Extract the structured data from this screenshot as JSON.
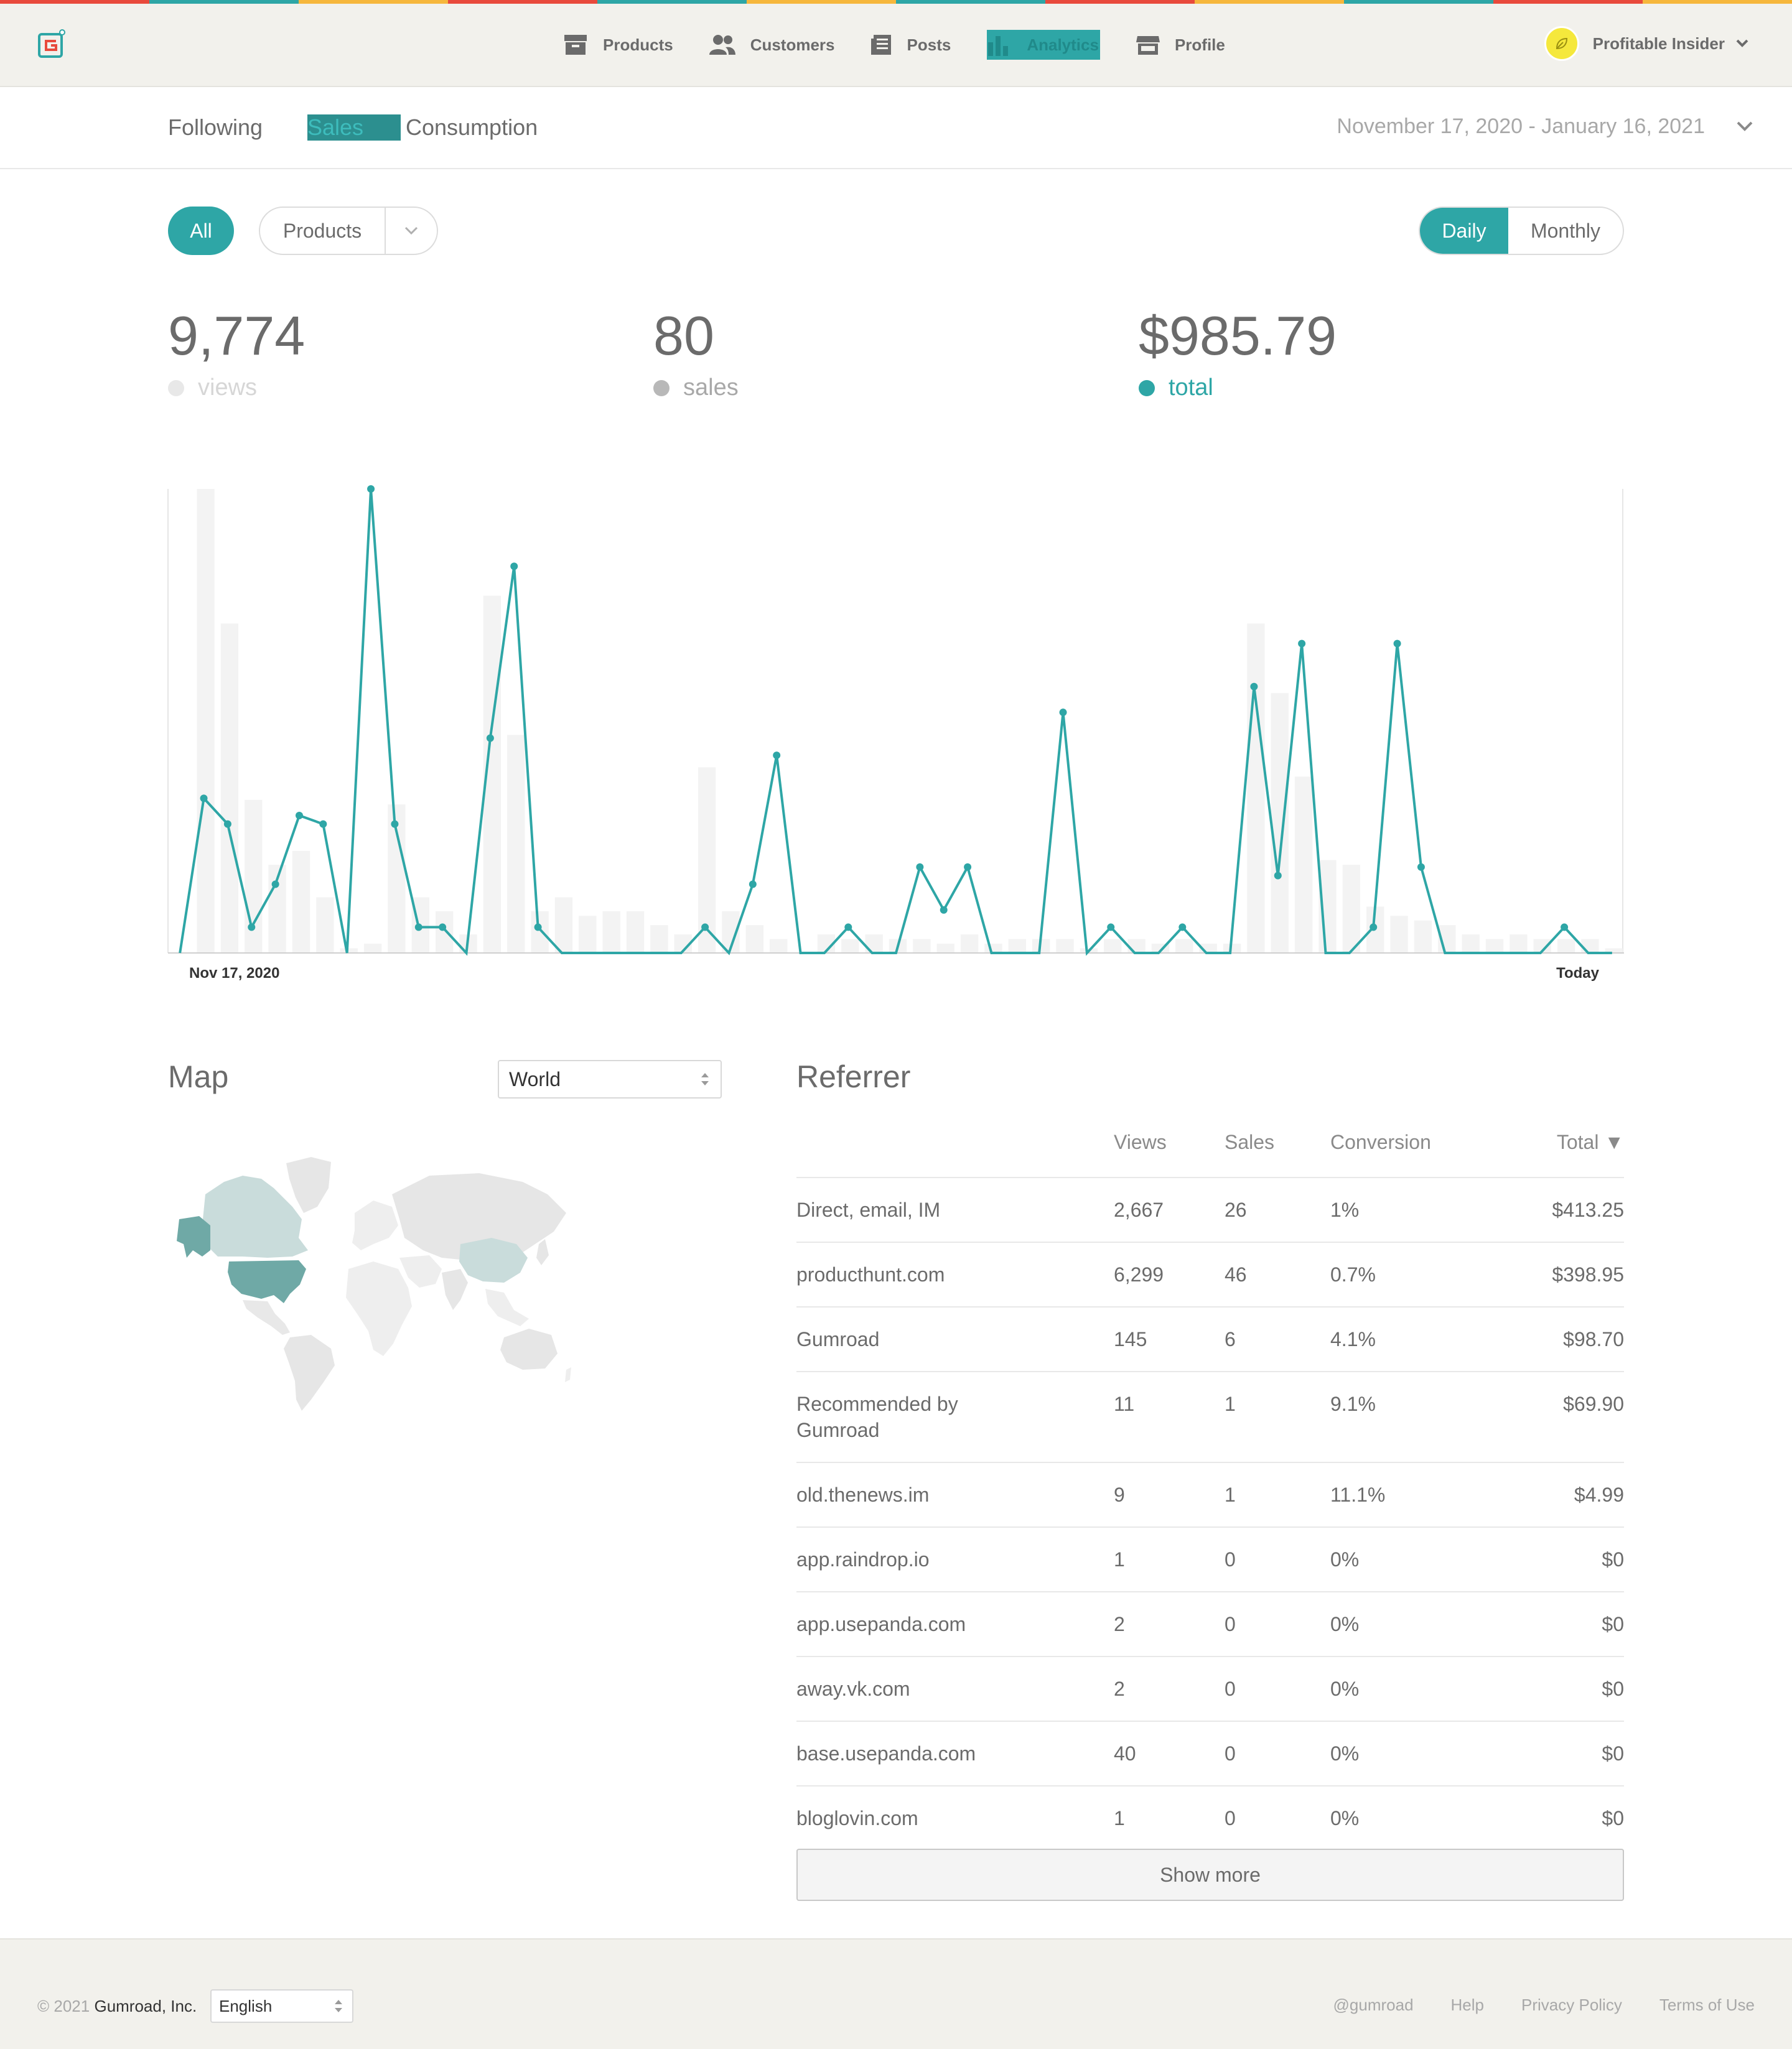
{
  "stripe_colors": [
    "#e84a3c",
    "#2ea6a6",
    "#f6b73c",
    "#e84a3c",
    "#2ea6a6",
    "#f6b73c",
    "#2ea6a6",
    "#e84a3c",
    "#f6b73c",
    "#2ea6a6",
    "#e84a3c",
    "#f6b73c"
  ],
  "accent_color": "#2ea6a6",
  "header": {
    "logo_icon": "gumroad-logo-icon",
    "nav": [
      {
        "label": "Products",
        "icon": "archive-box-icon",
        "active": false
      },
      {
        "label": "Customers",
        "icon": "users-icon",
        "active": false
      },
      {
        "label": "Posts",
        "icon": "document-icon",
        "active": false
      },
      {
        "label": "Analytics",
        "icon": "bar-chart-icon",
        "active": true
      },
      {
        "label": "Profile",
        "icon": "storefront-icon",
        "active": false
      }
    ],
    "user_name": "Profitable Insider"
  },
  "subnav": {
    "tabs": [
      "Following",
      "Sales",
      "Consumption"
    ],
    "selected": "Sales",
    "date_range": "November 17, 2020 - January 16, 2021"
  },
  "filters": {
    "all_label": "All",
    "products_label": "Products",
    "period": {
      "daily": "Daily",
      "monthly": "Monthly",
      "selected": "Daily"
    }
  },
  "stats": {
    "views": {
      "value": "9,774",
      "label": "views",
      "color": "#e4e4e4"
    },
    "sales": {
      "value": "80",
      "label": "sales",
      "color": "#b8b8b8"
    },
    "total": {
      "value": "$985.79",
      "label": "total",
      "color": "#2ea6a6"
    }
  },
  "chart_data": {
    "type": "line",
    "xlabel_start": "Nov 17, 2020",
    "xlabel_end": "Today",
    "days": 61,
    "series": [
      {
        "name": "total",
        "values": [
          0,
          36,
          30,
          6,
          16,
          32,
          30,
          0,
          108,
          30,
          6,
          6,
          0,
          50,
          90,
          6,
          0,
          0,
          0,
          0,
          0,
          0,
          6,
          0,
          16,
          46,
          0,
          0,
          6,
          0,
          0,
          20,
          10,
          20,
          0,
          0,
          0,
          56,
          0,
          6,
          0,
          0,
          6,
          0,
          0,
          62,
          18,
          72,
          0,
          0,
          6,
          72,
          20,
          0,
          0,
          0,
          0,
          0,
          6,
          0,
          0
        ]
      },
      {
        "name": "views",
        "values": [
          0,
          100,
          71,
          33,
          19,
          22,
          12,
          1,
          2,
          32,
          12,
          9,
          4,
          77,
          47,
          9,
          12,
          8,
          9,
          9,
          6,
          4,
          40,
          9,
          6,
          3,
          0,
          4,
          3,
          4,
          3,
          3,
          2,
          4,
          2,
          3,
          3,
          3,
          1,
          3,
          3,
          2,
          3,
          2,
          2,
          71,
          56,
          38,
          20,
          19,
          10,
          8,
          7,
          6,
          4,
          3,
          4,
          3,
          3,
          3,
          1
        ]
      }
    ],
    "ylim": [
      0,
      108
    ]
  },
  "map": {
    "title": "Map",
    "region": "World"
  },
  "referrer": {
    "title": "Referrer",
    "columns": [
      "Views",
      "Sales",
      "Conversion",
      "Total ▼"
    ],
    "rows": [
      {
        "name": "Direct, email, IM",
        "views": "2,667",
        "sales": "26",
        "conversion": "1%",
        "total": "$413.25"
      },
      {
        "name": "producthunt.com",
        "views": "6,299",
        "sales": "46",
        "conversion": "0.7%",
        "total": "$398.95"
      },
      {
        "name": "Gumroad",
        "views": "145",
        "sales": "6",
        "conversion": "4.1%",
        "total": "$98.70"
      },
      {
        "name": "Recommended by Gumroad",
        "views": "11",
        "sales": "1",
        "conversion": "9.1%",
        "total": "$69.90"
      },
      {
        "name": "old.thenews.im",
        "views": "9",
        "sales": "1",
        "conversion": "11.1%",
        "total": "$4.99"
      },
      {
        "name": "app.raindrop.io",
        "views": "1",
        "sales": "0",
        "conversion": "0%",
        "total": "$0"
      },
      {
        "name": "app.usepanda.com",
        "views": "2",
        "sales": "0",
        "conversion": "0%",
        "total": "$0"
      },
      {
        "name": "away.vk.com",
        "views": "2",
        "sales": "0",
        "conversion": "0%",
        "total": "$0"
      },
      {
        "name": "base.usepanda.com",
        "views": "40",
        "sales": "0",
        "conversion": "0%",
        "total": "$0"
      },
      {
        "name": "bloglovin.com",
        "views": "1",
        "sales": "0",
        "conversion": "0%",
        "total": "$0"
      }
    ],
    "show_more": "Show more"
  },
  "footer": {
    "copyright_prefix": "© 2021",
    "company": "Gumroad, Inc.",
    "language": "English",
    "links": [
      "@gumroad",
      "Help",
      "Privacy Policy",
      "Terms of Use"
    ]
  }
}
